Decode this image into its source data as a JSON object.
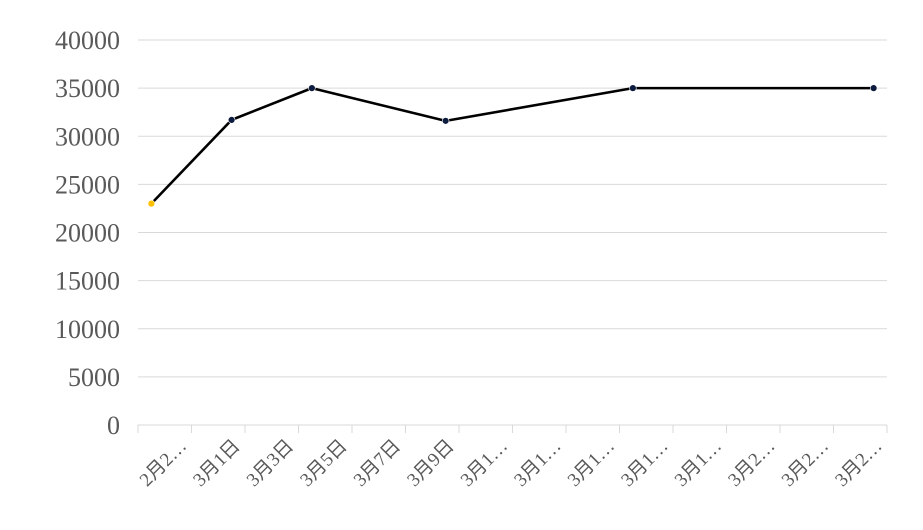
{
  "chart_data": {
    "type": "line",
    "x_tick_labels": [
      "2月2…",
      "3月1日",
      "3月3日",
      "3月5日",
      "3月7日",
      "3月9日",
      "3月1…",
      "3月1…",
      "3月1…",
      "3月1…",
      "3月1…",
      "3月2…",
      "3月2…",
      "3月2…"
    ],
    "series": [
      {
        "points": [
          {
            "x": 0.25,
            "y": 23000
          },
          {
            "x": 1.75,
            "y": 31700
          },
          {
            "x": 3.25,
            "y": 35000
          },
          {
            "x": 5.75,
            "y": 31600
          },
          {
            "x": 9.25,
            "y": 35000
          },
          {
            "x": 13.75,
            "y": 35000
          }
        ]
      }
    ],
    "ylim": [
      0,
      40000
    ],
    "yticks": [
      0,
      5000,
      10000,
      15000,
      20000,
      25000,
      30000,
      35000,
      40000
    ],
    "grid": true,
    "colors": {
      "line": "#000000",
      "marker": "#0d1b3e",
      "first_marker": "#ffc000",
      "grid": "#d9d9d9",
      "tick_text": "#595959"
    }
  }
}
